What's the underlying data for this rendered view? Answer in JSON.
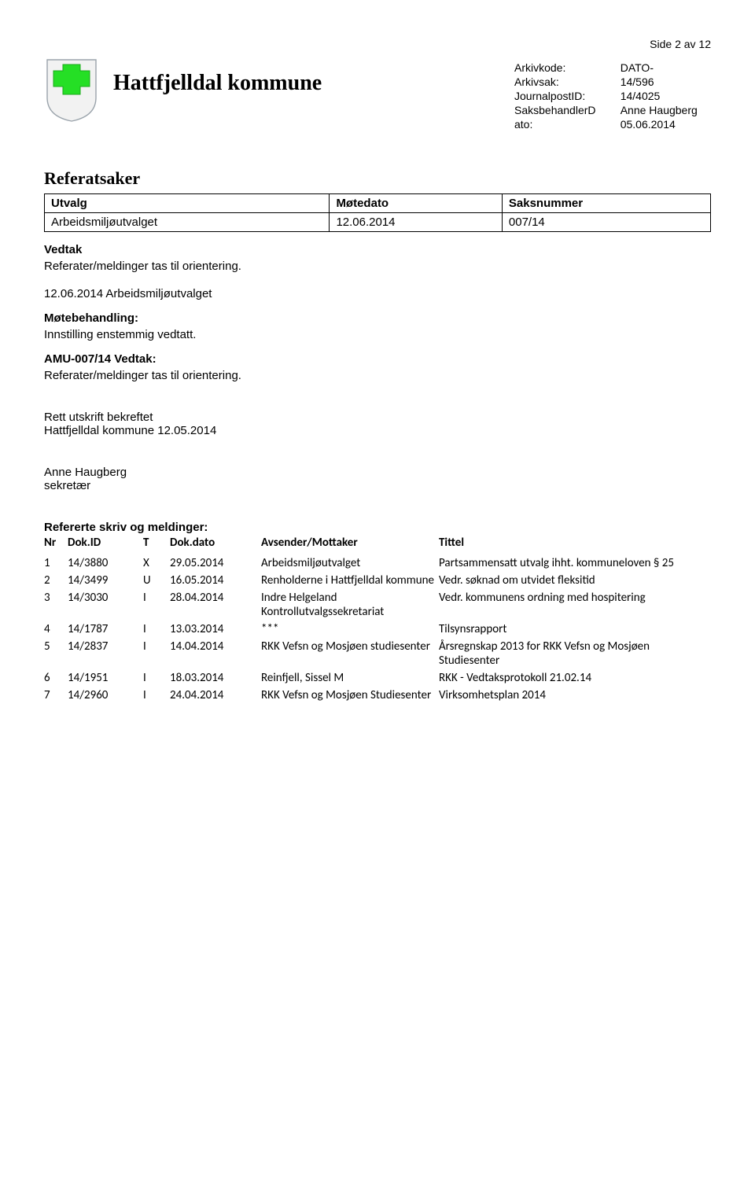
{
  "pageLabel": "Side 2 av 12",
  "header": {
    "title": "Hattfjelldal kommune",
    "meta": [
      {
        "label": "Arkivkode:",
        "value": "DATO-"
      },
      {
        "label": "Arkivsak:",
        "value": "14/596"
      },
      {
        "label": "JournalpostID:",
        "value": "14/4025"
      },
      {
        "label": "SaksbehandlerD",
        "value": "Anne Haugberg"
      },
      {
        "label": "ato:",
        "value": "05.06.2014"
      }
    ],
    "shield": {
      "outer_fill": "#f2f2f2",
      "outer_stroke": "#9aa3ab",
      "inner_fill": "#25df25",
      "inner_stroke": "#1ca81c"
    }
  },
  "s1": {
    "title": "Referatsaker"
  },
  "utvalg": {
    "headers": [
      "Utvalg",
      "Møtedato",
      "Saksnummer"
    ],
    "row": [
      "Arbeidsmiljøutvalget",
      "12.06.2014",
      "007/14"
    ]
  },
  "vedtak": {
    "title": "Vedtak",
    "text": "Referater/meldinger tas til orientering."
  },
  "mote": {
    "dateline": "12.06.2014 Arbeidsmiljøutvalget",
    "title": "Møtebehandling:",
    "text": "Innstilling enstemmig vedtatt."
  },
  "amu": {
    "title": "AMU-007/14 Vedtak:",
    "text": "Referater/meldinger tas til orientering."
  },
  "rett": {
    "l1": "Rett utskrift bekreftet",
    "l2": "Hattfjelldal kommune 12.05.2014"
  },
  "sign": {
    "name": "Anne Haugberg",
    "role": "sekretær"
  },
  "refs": {
    "title": "Refererte skriv og meldinger:",
    "headers": [
      "Nr",
      "Dok.ID",
      "T",
      "Dok.dato",
      "Avsender/Mottaker",
      "Tittel"
    ],
    "rows": [
      {
        "nr": "1",
        "id": "14/3880",
        "t": "X",
        "d": "29.05.2014",
        "av": "Arbeidsmiljøutvalget",
        "ti": "Partsammensatt utvalg ihht. kommuneloven § 25"
      },
      {
        "nr": "2",
        "id": "14/3499",
        "t": "U",
        "d": "16.05.2014",
        "av": "Renholderne i Hattfjelldal kommune",
        "ti": "Vedr. søknad om utvidet fleksitid"
      },
      {
        "nr": "3",
        "id": "14/3030",
        "t": "I",
        "d": "28.04.2014",
        "av": "Indre Helgeland Kontrollutvalgssekretariat",
        "ti": "Vedr. kommunens ordning med hospitering"
      },
      {
        "nr": "4",
        "id": "14/1787",
        "t": "I",
        "d": "13.03.2014",
        "av": "***",
        "ti": "Tilsynsrapport"
      },
      {
        "nr": "5",
        "id": "14/2837",
        "t": "I",
        "d": "14.04.2014",
        "av": "RKK Vefsn og Mosjøen studiesenter",
        "ti": "Årsregnskap 2013 for RKK Vefsn og Mosjøen Studiesenter"
      },
      {
        "nr": "6",
        "id": "14/1951",
        "t": "I",
        "d": "18.03.2014",
        "av": "Reinfjell, Sissel M",
        "ti": "RKK - Vedtaksprotokoll 21.02.14"
      },
      {
        "nr": "7",
        "id": "14/2960",
        "t": "I",
        "d": "24.04.2014",
        "av": "RKK Vefsn og Mosjøen Studiesenter",
        "ti": "Virksomhetsplan 2014"
      }
    ]
  }
}
